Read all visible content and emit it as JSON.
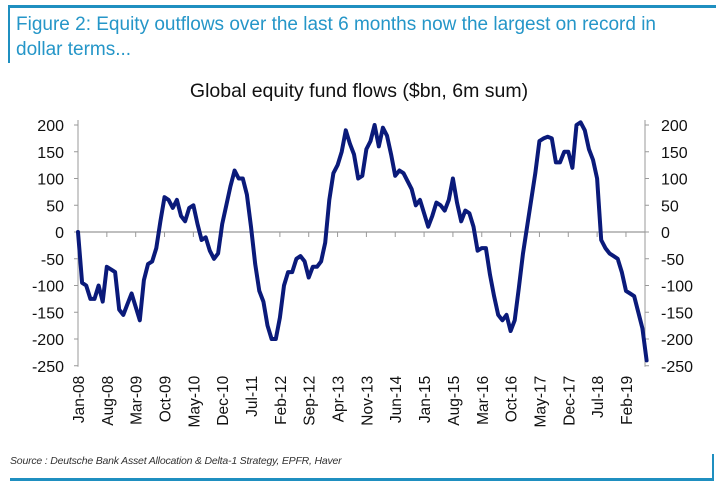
{
  "figure": {
    "caption": "Figure 2: Equity outflows over the last 6 months now the largest on record in dollar terms...",
    "source": "Source : Deutsche Bank Asset Allocation & Delta-1 Strategy, EPFR, Haver",
    "accent_color": "#1f8fc0",
    "caption_color": "#2596c8"
  },
  "chart_data": {
    "type": "line",
    "title": "Global equity fund flows ($bn, 6m sum)",
    "xlabel": "",
    "ylabel": "",
    "ylim": [
      -250,
      200
    ],
    "yticks": [
      200,
      150,
      100,
      50,
      0,
      -50,
      -100,
      -150,
      -200,
      -250
    ],
    "ytick_labels": [
      "200",
      "150",
      "100",
      "50",
      "0",
      "-50",
      "-100",
      "-150",
      "-200",
      "-250"
    ],
    "secondary_y_axis": true,
    "grid": false,
    "xtick_labels": [
      "Jan-08",
      "Aug-08",
      "Mar-09",
      "Oct-09",
      "May-10",
      "Dec-10",
      "Jul-11",
      "Feb-12",
      "Sep-12",
      "Apr-13",
      "Nov-13",
      "Jun-14",
      "Jan-15",
      "Aug-15",
      "Mar-16",
      "Oct-16",
      "May-17",
      "Dec-17",
      "Jul-18",
      "Feb-19"
    ],
    "x_start": "Jan-08",
    "x_frequency": "monthly",
    "series": [
      {
        "name": "Global equity fund flows",
        "color": "#0a1a7a",
        "values": [
          0,
          -95,
          -100,
          -125,
          -125,
          -100,
          -130,
          -65,
          -70,
          -75,
          -145,
          -155,
          -135,
          -115,
          -140,
          -165,
          -90,
          -60,
          -55,
          -30,
          20,
          65,
          60,
          45,
          60,
          30,
          20,
          45,
          50,
          15,
          -15,
          -10,
          -35,
          -50,
          -40,
          15,
          50,
          85,
          115,
          100,
          100,
          70,
          10,
          -60,
          -110,
          -130,
          -175,
          -200,
          -200,
          -160,
          -100,
          -75,
          -75,
          -50,
          -45,
          -55,
          -85,
          -65,
          -65,
          -55,
          -20,
          60,
          110,
          125,
          150,
          190,
          165,
          145,
          100,
          105,
          155,
          170,
          200,
          160,
          195,
          180,
          145,
          105,
          115,
          110,
          95,
          80,
          50,
          60,
          35,
          10,
          30,
          55,
          50,
          40,
          60,
          100,
          55,
          20,
          40,
          35,
          10,
          -35,
          -30,
          -30,
          -80,
          -120,
          -155,
          -165,
          -155,
          -185,
          -165,
          -105,
          -40,
          10,
          60,
          110,
          170,
          175,
          178,
          175,
          130,
          130,
          150,
          150,
          120,
          200,
          205,
          190,
          155,
          135,
          100,
          -15,
          -30,
          -40,
          -45,
          -50,
          -75,
          -110,
          -115,
          -120,
          -150,
          -180,
          -240
        ]
      }
    ]
  }
}
